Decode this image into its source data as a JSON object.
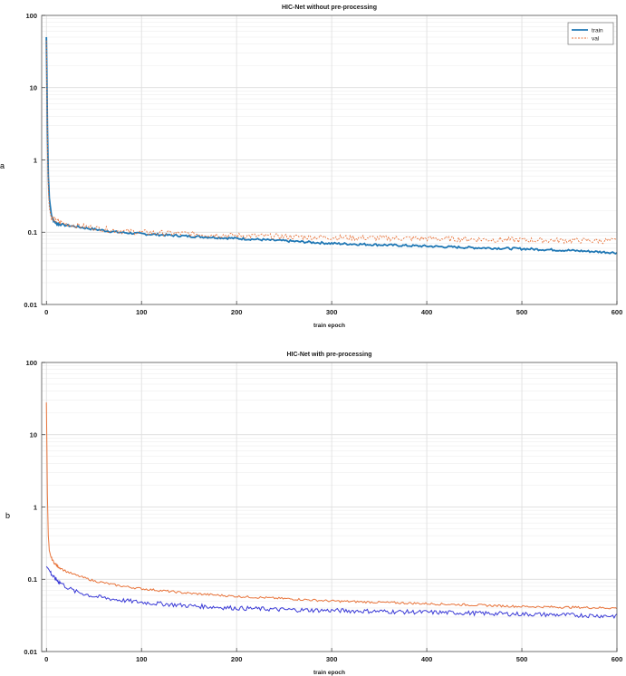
{
  "chart_data": [
    {
      "type": "line",
      "title": "HIC-Net without pre-processing",
      "panel_letter": "a",
      "xlabel": "train epoch",
      "ylabel": "",
      "yscale": "log",
      "xlim": [
        -5,
        600
      ],
      "ylim": [
        0.01,
        100
      ],
      "xticks": [
        0,
        100,
        200,
        300,
        400,
        500,
        600
      ],
      "yticks": [
        0.01,
        0.1,
        1,
        10,
        100
      ],
      "ytick_labels": [
        "0.01",
        "0.1",
        "1",
        "10",
        "100"
      ],
      "grid": true,
      "legend_position": "top-right",
      "series": [
        {
          "name": "train",
          "color": "#1f77b4",
          "style": "solid",
          "x": [
            0,
            1,
            2,
            3,
            5,
            8,
            12,
            20,
            30,
            50,
            75,
            100,
            150,
            200,
            250,
            300,
            350,
            400,
            450,
            500,
            550,
            600
          ],
          "values": [
            50,
            3,
            0.6,
            0.3,
            0.18,
            0.14,
            0.13,
            0.125,
            0.12,
            0.11,
            0.1,
            0.095,
            0.088,
            0.082,
            0.076,
            0.07,
            0.067,
            0.064,
            0.061,
            0.059,
            0.056,
            0.052
          ]
        },
        {
          "name": "val",
          "color": "#e8743b",
          "style": "dashed",
          "x": [
            0,
            1,
            2,
            3,
            5,
            8,
            12,
            20,
            30,
            50,
            75,
            100,
            150,
            200,
            250,
            300,
            350,
            400,
            450,
            500,
            550,
            600
          ],
          "values": [
            45,
            2.5,
            0.4,
            0.22,
            0.16,
            0.15,
            0.14,
            0.13,
            0.125,
            0.115,
            0.105,
            0.1,
            0.095,
            0.09,
            0.087,
            0.085,
            0.083,
            0.082,
            0.08,
            0.078,
            0.077,
            0.076
          ]
        }
      ]
    },
    {
      "type": "line",
      "title": "HIC-Net with pre-processing",
      "panel_letter": "b",
      "xlabel": "train epoch",
      "ylabel": "",
      "yscale": "log",
      "xlim": [
        -5,
        600
      ],
      "ylim": [
        0.01,
        100
      ],
      "xticks": [
        0,
        100,
        200,
        300,
        400,
        500,
        600
      ],
      "yticks": [
        0.01,
        0.1,
        1,
        10,
        100
      ],
      "ytick_labels": [
        "0.01",
        "0.1",
        "1",
        "10",
        "100"
      ],
      "grid": true,
      "series": [
        {
          "color": "#e8743b",
          "style": "solid",
          "x": [
            0,
            1,
            2,
            3,
            5,
            8,
            12,
            20,
            30,
            50,
            75,
            100,
            150,
            200,
            250,
            300,
            350,
            400,
            450,
            500,
            550,
            600
          ],
          "values": [
            28,
            1.5,
            0.4,
            0.25,
            0.2,
            0.17,
            0.15,
            0.13,
            0.115,
            0.095,
            0.082,
            0.074,
            0.064,
            0.058,
            0.054,
            0.05,
            0.048,
            0.046,
            0.044,
            0.042,
            0.041,
            0.04
          ]
        },
        {
          "color": "#3a3ad6",
          "style": "solid",
          "x": [
            0,
            2,
            5,
            8,
            12,
            20,
            30,
            50,
            75,
            100,
            150,
            200,
            250,
            300,
            350,
            400,
            450,
            500,
            550,
            600
          ],
          "values": [
            0.15,
            0.14,
            0.12,
            0.105,
            0.095,
            0.08,
            0.068,
            0.058,
            0.052,
            0.048,
            0.043,
            0.04,
            0.038,
            0.037,
            0.036,
            0.035,
            0.034,
            0.033,
            0.032,
            0.031
          ]
        }
      ]
    }
  ]
}
